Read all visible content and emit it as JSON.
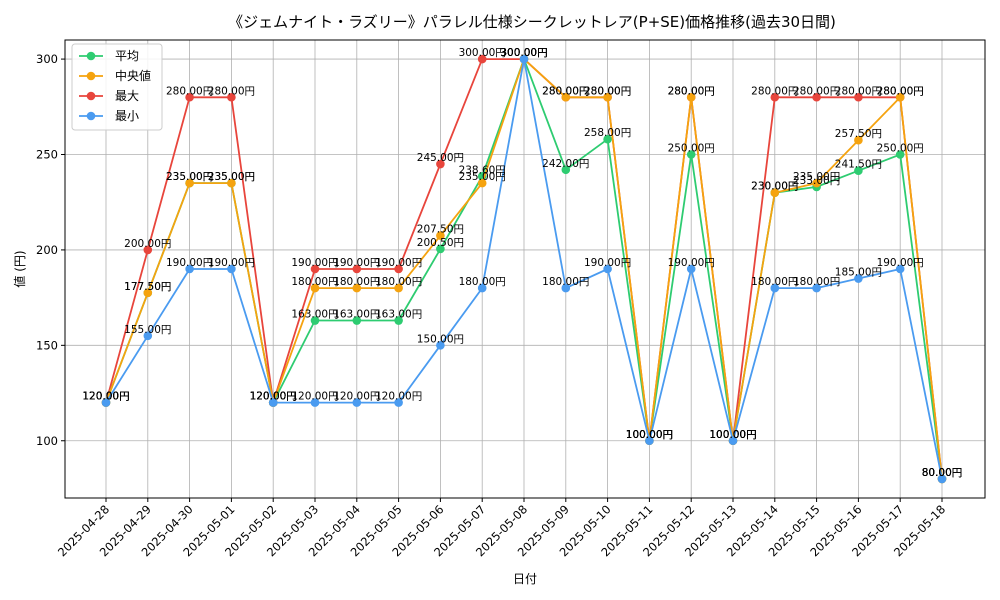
{
  "chart_data": {
    "type": "line",
    "title": "《ジェムナイト・ラズリー》パラレル仕様シークレットレア(P+SE)価格推移(過去30日間)",
    "xlabel": "日付",
    "ylabel": "値 (円)",
    "ylim": [
      70,
      310
    ],
    "yticks": [
      100,
      150,
      200,
      250,
      300
    ],
    "grid": true,
    "legend_position": "top-left",
    "value_suffix": "円",
    "categories": [
      "2025-04-28",
      "2025-04-29",
      "2025-04-30",
      "2025-05-01",
      "2025-05-02",
      "2025-05-03",
      "2025-05-04",
      "2025-05-05",
      "2025-05-06",
      "2025-05-07",
      "2025-05-08",
      "2025-05-09",
      "2025-05-10",
      "2025-05-11",
      "2025-05-12",
      "2025-05-13",
      "2025-05-14",
      "2025-05-15",
      "2025-05-16",
      "2025-05-17",
      "2025-05-18"
    ],
    "series": [
      {
        "name": "平均",
        "color": "#2ecc71",
        "values": [
          120,
          177.5,
          235,
          235,
          120,
          163,
          163,
          163,
          200.5,
          238.6,
          300,
          242,
          258,
          100,
          250,
          100,
          230,
          233,
          241.5,
          250,
          80
        ]
      },
      {
        "name": "中央値",
        "color": "#f5a30f",
        "values": [
          120,
          177.5,
          235,
          235,
          120,
          180,
          180,
          180,
          207.5,
          235,
          300,
          280,
          280,
          100,
          280,
          100,
          230,
          235,
          257.5,
          280,
          80
        ]
      },
      {
        "name": "最大",
        "color": "#e8453c",
        "values": [
          120,
          200,
          280,
          280,
          120,
          190,
          190,
          190,
          245,
          300,
          300,
          280,
          280,
          100,
          280,
          100,
          280,
          280,
          280,
          280,
          80
        ]
      },
      {
        "name": "最小",
        "color": "#4a9bf0",
        "values": [
          120,
          155,
          190,
          190,
          120,
          120,
          120,
          120,
          150,
          180,
          300,
          180,
          190,
          100,
          190,
          100,
          180,
          180,
          185,
          190,
          80
        ]
      }
    ]
  }
}
